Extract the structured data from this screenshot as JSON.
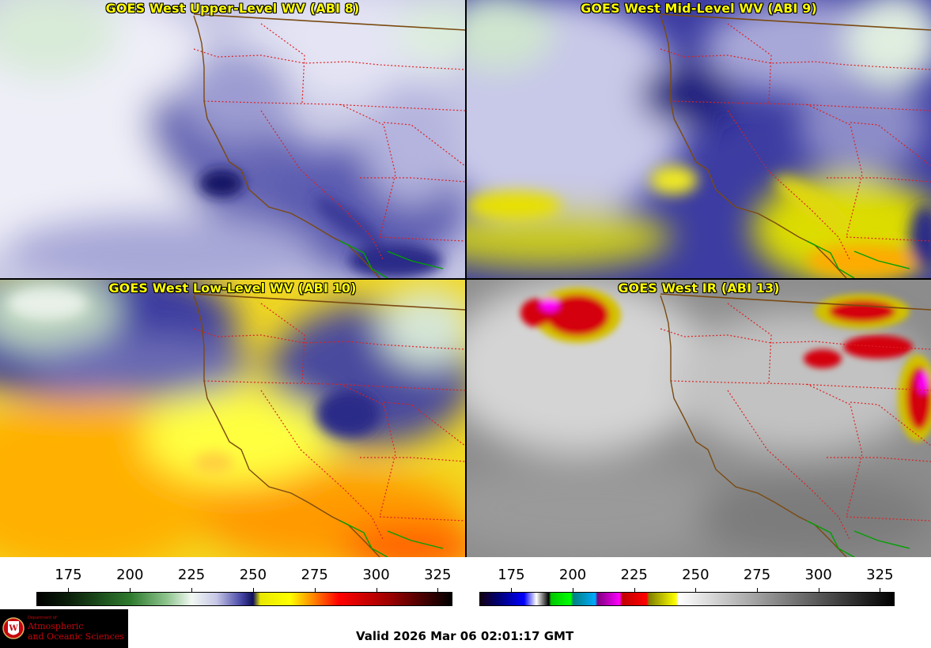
{
  "panels": [
    {
      "id": "p8",
      "title": "GOES West Upper-Level WV (ABI 8)",
      "product": "upper-level-wv"
    },
    {
      "id": "p9",
      "title": "GOES West Mid-Level WV (ABI 9)",
      "product": "mid-level-wv"
    },
    {
      "id": "p10",
      "title": "GOES West Low-Level WV (ABI 10)",
      "product": "low-level-wv"
    },
    {
      "id": "p13",
      "title": "GOES West IR (ABI 13)",
      "product": "ir"
    }
  ],
  "colorbars": {
    "wv": {
      "ticks": [
        "175",
        "200",
        "225",
        "250",
        "275",
        "300",
        "325"
      ],
      "range": [
        162,
        331
      ],
      "stops": [
        {
          "v": 162,
          "c": "#000000"
        },
        {
          "v": 175,
          "c": "#0a1f0a"
        },
        {
          "v": 200,
          "c": "#2e7a2e"
        },
        {
          "v": 215,
          "c": "#8ec58e"
        },
        {
          "v": 225,
          "c": "#f2f8f2"
        },
        {
          "v": 235,
          "c": "#c8c8e6"
        },
        {
          "v": 245,
          "c": "#4a4aa8"
        },
        {
          "v": 250,
          "c": "#10105a"
        },
        {
          "v": 253,
          "c": "#e8e800"
        },
        {
          "v": 265,
          "c": "#ffff00"
        },
        {
          "v": 275,
          "c": "#ff8000"
        },
        {
          "v": 285,
          "c": "#ff0000"
        },
        {
          "v": 305,
          "c": "#a00000"
        },
        {
          "v": 331,
          "c": "#000000"
        }
      ]
    },
    "ir": {
      "ticks": [
        "175",
        "200",
        "225",
        "250",
        "275",
        "300",
        "325"
      ],
      "range": [
        162,
        331
      ],
      "stops": [
        {
          "v": 162,
          "c": "#140014"
        },
        {
          "v": 170,
          "c": "#00007a"
        },
        {
          "v": 180,
          "c": "#0000ff"
        },
        {
          "v": 185,
          "c": "#ffffff"
        },
        {
          "v": 190,
          "c": "#000000"
        },
        {
          "v": 191,
          "c": "#00c800"
        },
        {
          "v": 199,
          "c": "#00ff00"
        },
        {
          "v": 200,
          "c": "#008080"
        },
        {
          "v": 209,
          "c": "#00aaff"
        },
        {
          "v": 210,
          "c": "#800080"
        },
        {
          "v": 219,
          "c": "#ff00ff"
        },
        {
          "v": 220,
          "c": "#c00000"
        },
        {
          "v": 230,
          "c": "#ff0000"
        },
        {
          "v": 231,
          "c": "#808000"
        },
        {
          "v": 242,
          "c": "#ffff00"
        },
        {
          "v": 243,
          "c": "#ffffff"
        },
        {
          "v": 275,
          "c": "#a0a0a0"
        },
        {
          "v": 331,
          "c": "#000000"
        }
      ]
    }
  },
  "palette": {
    "border_color": "#dd2020",
    "coast_color": "#7a4a10",
    "mexico_color": "#00a000",
    "title_color": "#ffff00"
  },
  "logo": {
    "dept": "Department of",
    "line1": "Atmospheric",
    "line2": "and Oceanic Sciences"
  },
  "footer": {
    "valid_label": "Valid 2026 Mar 06 02:01:17 GMT"
  }
}
